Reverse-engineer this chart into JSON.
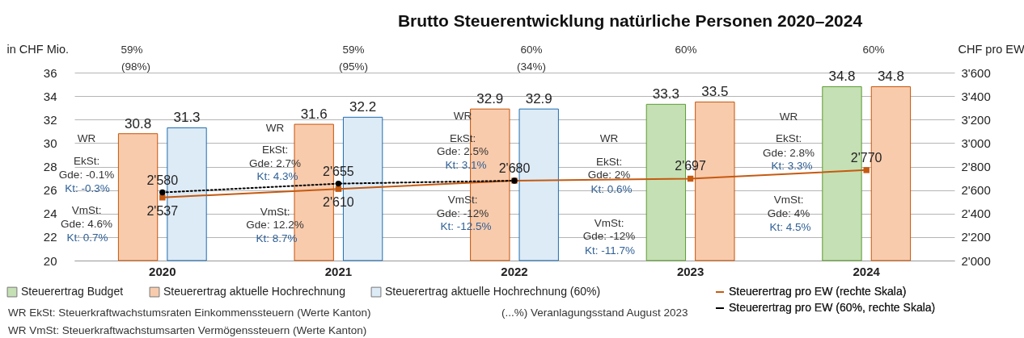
{
  "chart_data": {
    "type": "bar",
    "title": "Brutto Steuerentwicklung natürliche Personen 2020–2024",
    "ylabel": "in CHF Mio.",
    "y2label": "CHF pro EW",
    "categories": [
      "2020",
      "2021",
      "2022",
      "2023",
      "2024"
    ],
    "series": [
      {
        "name": "Steuerertrag Budget",
        "color": "#c5e0b4",
        "values": [
          null,
          null,
          null,
          33.3,
          34.8
        ]
      },
      {
        "name": "Steuerertrag aktuelle Hochrechnung",
        "color": "#f8cbad",
        "values": [
          30.8,
          31.6,
          32.9,
          33.5,
          34.8
        ]
      },
      {
        "name": "Steuerertrag aktuelle Hochrechnung (60%)",
        "color": "#ddebf7",
        "values": [
          31.3,
          32.2,
          32.9,
          null,
          null
        ]
      },
      {
        "name": "Steuerertrag pro EW (rechte Skala)",
        "type": "line",
        "axis": "y2",
        "color": "#c55a11",
        "marker": "square",
        "line_style": "solid",
        "values": [
          2537,
          2610,
          2680,
          2697,
          2770
        ],
        "value_labels": [
          "2'537",
          "2'610",
          "2'680",
          "2'697",
          "2'770"
        ]
      },
      {
        "name": "Steuerertrag pro EW (60%, rechte Skala)",
        "type": "line",
        "axis": "y2",
        "color": "#000000",
        "marker": "circle",
        "line_style": "dotted",
        "values": [
          2580,
          2655,
          2680,
          null,
          null
        ],
        "value_labels": [
          "2'580",
          "2'655",
          null,
          null,
          null
        ]
      }
    ],
    "data_labels": true,
    "ylim": [
      20,
      36
    ],
    "yticks": [
      20,
      22,
      24,
      26,
      28,
      30,
      32,
      34,
      36
    ],
    "y2lim": [
      2000,
      3600
    ],
    "y2ticks": [
      {
        "value": 2000,
        "label": "2'000"
      },
      {
        "value": 2200,
        "label": "2'200"
      },
      {
        "value": 2400,
        "label": "2'400"
      },
      {
        "value": 2600,
        "label": "2'600"
      },
      {
        "value": 2800,
        "label": "2'800"
      },
      {
        "value": 3000,
        "label": "3'000"
      },
      {
        "value": 3200,
        "label": "3'200"
      },
      {
        "value": 3400,
        "label": "3'400"
      },
      {
        "value": 3600,
        "label": "3'600"
      }
    ],
    "grid": "y",
    "legend": "bottom",
    "annotations": [
      "59%",
      "(98%)",
      "59%",
      "(95%)",
      "60%",
      "(34%)",
      "60%",
      "60%",
      "WR",
      "EkSt:",
      "Gde: -0.1%",
      "Kt: -0.3%",
      "VmSt:",
      "Gde: 4.6%",
      "Kt: 0.7%",
      "WR",
      "EkSt:",
      "Gde: 2.7%",
      "Kt: 4.3%",
      "VmSt:",
      "Gde: 12.2%",
      "Kt: 8.7%",
      "WR",
      "EkSt:",
      "Gde: 2.5%",
      "Kt: 3.1%",
      "VmSt:",
      "Gde: -12%",
      "Kt: -12.5%",
      "WR",
      "EkSt:",
      "Gde: 2%",
      "Kt: 0.6%",
      "VmSt:",
      "Gde: -12%",
      "Kt: -11.7%",
      "WR",
      "EkSt:",
      "Gde: 2.8%",
      "Kt: 3.3%",
      "VmSt:",
      "Gde: 4%",
      "Kt: 4.5%",
      "WR EkSt: Steuerkraftwachstumsraten Einkommenssteuern (Werte Kanton)",
      "WR VmSt: Steuerkraftwachstumsarten Vermögenssteuern (Werte Kanton)",
      "(...%) Veranlagungsstand August 2023"
    ]
  }
}
